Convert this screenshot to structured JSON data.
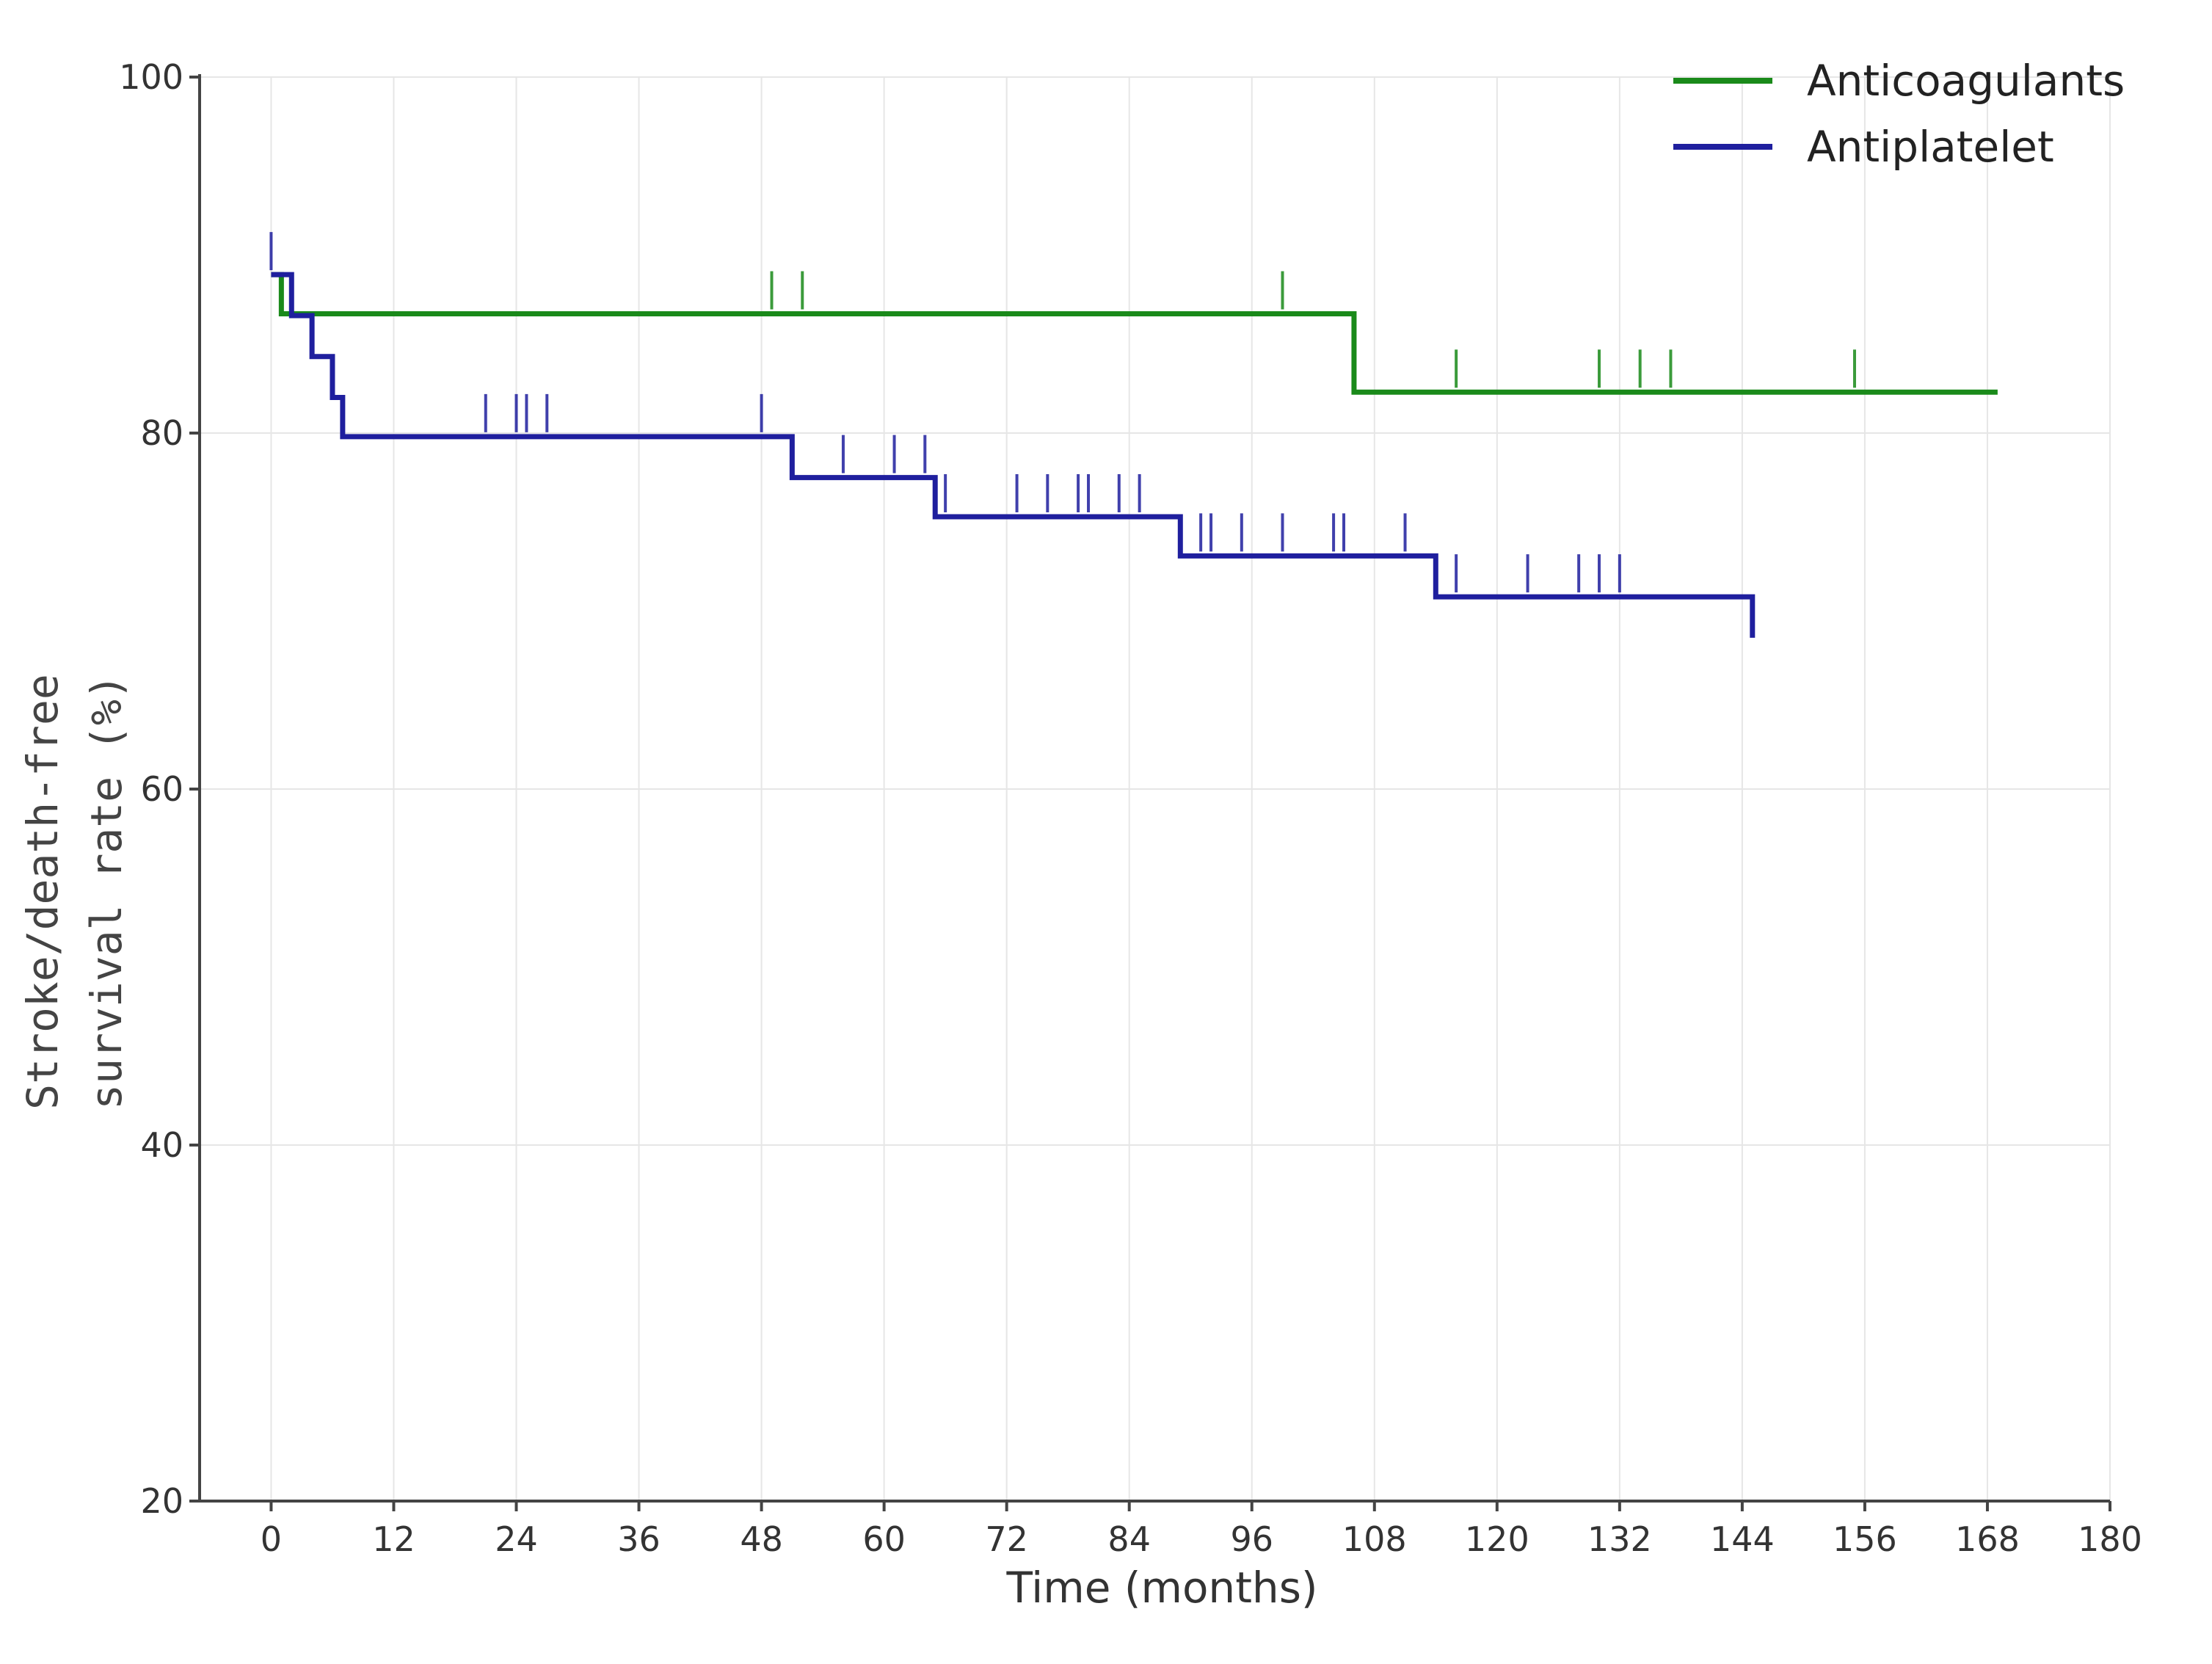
{
  "chart_data": {
    "type": "line",
    "subtype": "kaplan-meier-step",
    "xlabel": "Time (months)",
    "ylabel_lines": [
      "Stroke/death-free",
      "survival rate (%)"
    ],
    "xlim": [
      -7,
      180
    ],
    "ylim": [
      20,
      100
    ],
    "x_ticks": [
      0,
      12,
      24,
      36,
      48,
      60,
      72,
      84,
      96,
      108,
      120,
      132,
      144,
      156,
      168,
      180
    ],
    "y_ticks": [
      20,
      40,
      60,
      80,
      100
    ],
    "y_tick_labels": [
      "20",
      "40",
      "60",
      "80",
      "100"
    ],
    "grid": true,
    "legend_position": "top-right",
    "series": [
      {
        "name": "Anticoagulants",
        "color": "#1a8a1a",
        "steps": [
          [
            0,
            88.9
          ],
          [
            1,
            86.7
          ],
          [
            106,
            82.3
          ],
          [
            169,
            82.3
          ]
        ],
        "censor_times": [
          49,
          52,
          99,
          116,
          130,
          134,
          137,
          155
        ],
        "end_time": 169
      },
      {
        "name": "Antiplatelet",
        "color": "#1f1f9e",
        "steps": [
          [
            0,
            88.9
          ],
          [
            2,
            86.6
          ],
          [
            4,
            84.3
          ],
          [
            6,
            82.0
          ],
          [
            7,
            79.8
          ],
          [
            51,
            77.5
          ],
          [
            65,
            75.3
          ],
          [
            89,
            73.1
          ],
          [
            114,
            70.8
          ],
          [
            145,
            68.5
          ]
        ],
        "censor_times": [
          0,
          21,
          24,
          25,
          27,
          48,
          56,
          61,
          64,
          66,
          73,
          76,
          79,
          80,
          83,
          85,
          91,
          92,
          95,
          99,
          104,
          105,
          111,
          116,
          123,
          128,
          130,
          132
        ],
        "end_time": 145
      }
    ]
  }
}
